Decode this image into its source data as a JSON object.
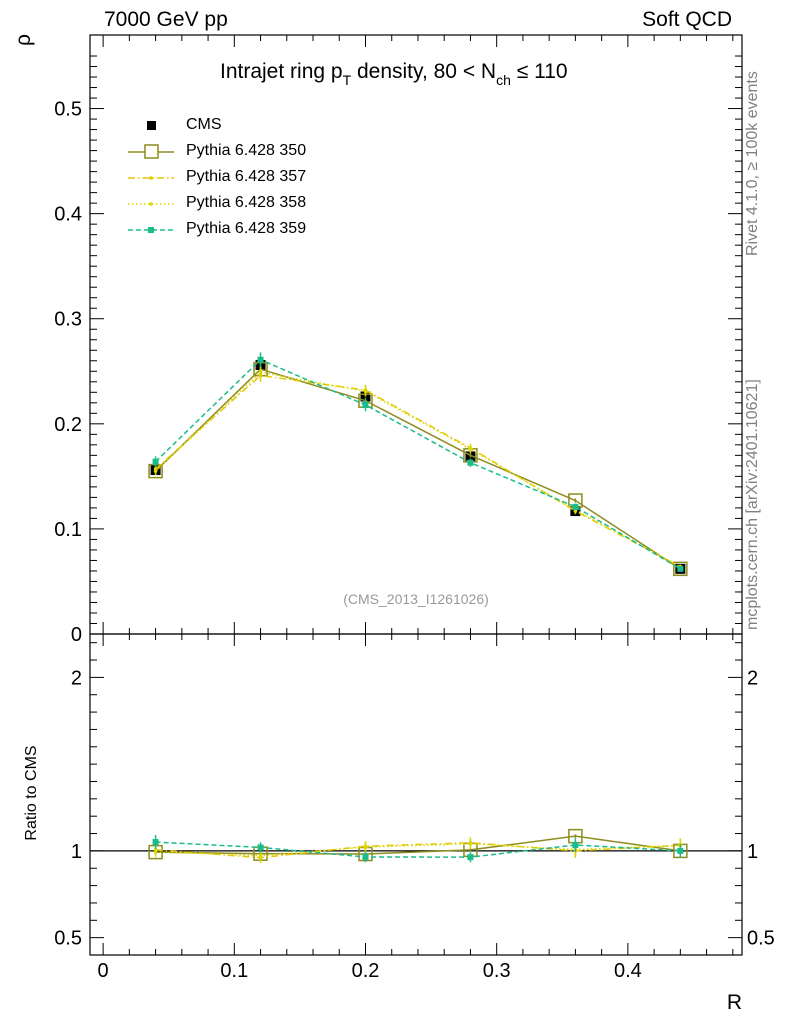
{
  "header": {
    "energy": "7000 GeV pp",
    "process": "Soft QCD"
  },
  "side_labels": {
    "rivet": "Rivet 4.1.0, ≥ 100k events",
    "mcplots": "mcplots.cern.ch [arXiv:2401.10621]"
  },
  "title": {
    "prefix": "Intrajet ring p",
    "sub_t": "T",
    "middle": " density, 80 < N",
    "sub_ch": "ch",
    "suffix": " ≤ 110"
  },
  "watermark": "(CMS_2013_I1261026)",
  "legend": [
    {
      "label": "CMS"
    },
    {
      "label": "Pythia 6.428 350"
    },
    {
      "label": "Pythia 6.428 357"
    },
    {
      "label": "Pythia 6.428 358"
    },
    {
      "label": "Pythia 6.428 359"
    }
  ],
  "chart_data": [
    {
      "type": "line",
      "panel": "main",
      "ylabel": "ρ",
      "xlabel": "R",
      "xlim": [
        -0.01,
        0.487
      ],
      "ylim": [
        0,
        0.57
      ],
      "x_ticks": [
        0,
        0.1,
        0.2,
        0.3,
        0.4
      ],
      "x_tick_labels": [
        "0",
        "0.1",
        "0.2",
        "0.3",
        "0.4"
      ],
      "y_ticks": [
        0,
        0.1,
        0.2,
        0.3,
        0.4,
        0.5
      ],
      "y_tick_labels": [
        "0",
        "0.1",
        "0.2",
        "0.3",
        "0.4",
        "0.5"
      ],
      "x": [
        0.04,
        0.12,
        0.2,
        0.28,
        0.36,
        0.44
      ],
      "series": [
        {
          "name": "CMS",
          "color": "#000000",
          "style": "points",
          "values": [
            0.156,
            0.256,
            0.226,
            0.169,
            0.117,
            0.062
          ],
          "errors": [
            0.004,
            0.005,
            0.005,
            0.004,
            0.003,
            0.002
          ]
        },
        {
          "name": "Pythia 6.428 350",
          "color": "#8c8c1e",
          "style": "solid-open-square",
          "values": [
            0.155,
            0.252,
            0.222,
            0.17,
            0.127,
            0.062
          ],
          "errors": [
            0.002,
            0.003,
            0.003,
            0.002,
            0.002,
            0.001
          ]
        },
        {
          "name": "Pythia 6.428 357",
          "color": "#e6c800",
          "style": "dashdot",
          "values": [
            0.157,
            0.246,
            0.232,
            0.177,
            0.117,
            0.064
          ],
          "errors": [
            0.004,
            0.006,
            0.005,
            0.004,
            0.003,
            0.002
          ]
        },
        {
          "name": "Pythia 6.428 358",
          "color": "#d8d800",
          "style": "dotted",
          "values": [
            0.155,
            0.249,
            0.231,
            0.176,
            0.118,
            0.064
          ],
          "errors": [
            0.004,
            0.006,
            0.005,
            0.004,
            0.003,
            0.002
          ]
        },
        {
          "name": "Pythia 6.428 359",
          "color": "#1abc8c",
          "style": "dashed",
          "values": [
            0.164,
            0.261,
            0.218,
            0.163,
            0.121,
            0.062
          ],
          "errors": [
            0.005,
            0.007,
            0.006,
            0.004,
            0.003,
            0.002
          ]
        }
      ]
    },
    {
      "type": "line",
      "panel": "ratio",
      "ylabel": "Ratio to CMS",
      "xlabel": "R",
      "xlim": [
        -0.01,
        0.487
      ],
      "ylim": [
        0.4,
        2.25
      ],
      "y_ticks": [
        0.5,
        1,
        2
      ],
      "y_tick_labels": [
        "0.5",
        "1",
        "2"
      ],
      "x": [
        0.04,
        0.12,
        0.2,
        0.28,
        0.36,
        0.44
      ],
      "series": [
        {
          "name": "Pythia 6.428 350",
          "color": "#8c8c1e",
          "style": "solid-open-square",
          "values": [
            0.993,
            0.984,
            0.982,
            1.006,
            1.085,
            1.0
          ],
          "errors": [
            0.01,
            0.01,
            0.01,
            0.01,
            0.01,
            0.01
          ]
        },
        {
          "name": "Pythia 6.428 357",
          "color": "#e6c800",
          "style": "dashdot",
          "values": [
            1.006,
            0.961,
            1.027,
            1.047,
            1.0,
            1.032
          ],
          "errors": [
            0.03,
            0.03,
            0.03,
            0.03,
            0.04,
            0.04
          ]
        },
        {
          "name": "Pythia 6.428 358",
          "color": "#d8d800",
          "style": "dotted",
          "values": [
            0.994,
            0.973,
            1.022,
            1.041,
            1.008,
            1.032
          ],
          "errors": [
            0.03,
            0.03,
            0.03,
            0.03,
            0.04,
            0.04
          ]
        },
        {
          "name": "Pythia 6.428 359",
          "color": "#1abc8c",
          "style": "dashed",
          "values": [
            1.051,
            1.02,
            0.965,
            0.964,
            1.034,
            1.0
          ],
          "errors": [
            0.04,
            0.03,
            0.03,
            0.03,
            0.04,
            0.04
          ]
        }
      ]
    }
  ]
}
